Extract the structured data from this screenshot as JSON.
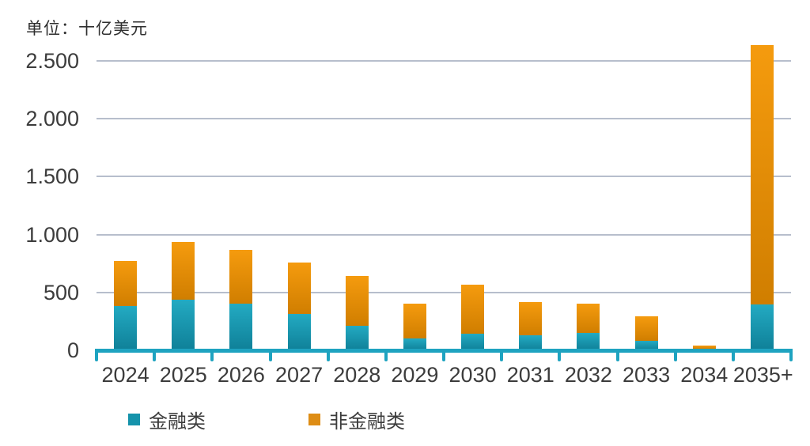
{
  "unit_label": "单位：十亿美元",
  "colors": {
    "financial_top": "#23aac2",
    "financial_bottom": "#0f8098",
    "nonfinancial_top": "#f59b0e",
    "nonfinancial_bottom": "#d07e00",
    "financial_swatch": "#1593ab",
    "nonfinancial_swatch": "#de8d15",
    "axis": "#1ea3c0",
    "gridline": "#b7becc",
    "text": "#3c3c3c"
  },
  "chart_data": {
    "type": "bar",
    "stacked": true,
    "title": "单位：十亿美元",
    "xlabel": "",
    "ylabel": "十亿美元",
    "grid": true,
    "legend_position": "bottom",
    "ylim": [
      0,
      2500
    ],
    "yticks": [
      {
        "value": 2500,
        "label": "2.500"
      },
      {
        "value": 2000,
        "label": "2.000"
      },
      {
        "value": 1500,
        "label": "1.500"
      },
      {
        "value": 1000,
        "label": "1.000"
      },
      {
        "value": 500,
        "label": "500"
      },
      {
        "value": 0,
        "label": "0"
      }
    ],
    "categories": [
      "2024",
      "2025",
      "2026",
      "2027",
      "2028",
      "2029",
      "2030",
      "2031",
      "2032",
      "2033",
      "2034",
      "2035+"
    ],
    "series": [
      {
        "name": "金融类",
        "values": [
          380,
          440,
          400,
          315,
          210,
          100,
          145,
          130,
          150,
          85,
          5,
          395
        ]
      },
      {
        "name": "非金融类",
        "values": [
          390,
          495,
          465,
          445,
          435,
          300,
          420,
          290,
          255,
          210,
          35,
          2245
        ]
      }
    ],
    "totals": [
      770,
      935,
      865,
      760,
      645,
      400,
      565,
      420,
      405,
      295,
      40,
      2640
    ]
  },
  "legend": {
    "financial_label": "金融类",
    "nonfinancial_label": "非金融类"
  }
}
